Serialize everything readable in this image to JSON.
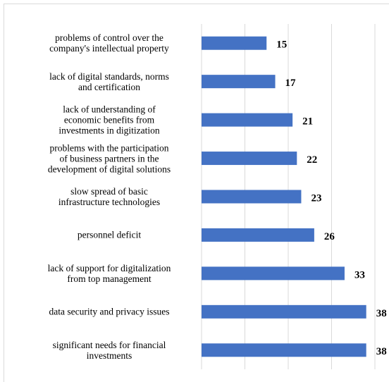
{
  "chart_data": {
    "type": "barh",
    "categories": [
      "problems of control over the\ncompany's intellectual property",
      "lack of digital standards, norms\nand certification",
      "lack of understanding of\neconomic benefits from\ninvestments in digitization",
      "problems with the participation\nof business partners in the\ndevelopment of digital solutions",
      "slow spread of basic\ninfrastructure technologies",
      "personnel deficit",
      "lack of support for digitalization\nfrom top management",
      "data security and privacy issues",
      "significant needs for financial\ninvestments"
    ],
    "values": [
      15,
      17,
      21,
      22,
      23,
      26,
      33,
      38,
      38
    ],
    "color": "#4472c4",
    "xlim": [
      0,
      40
    ],
    "xticks": [
      0,
      10,
      20,
      30,
      40
    ],
    "grid": true
  }
}
